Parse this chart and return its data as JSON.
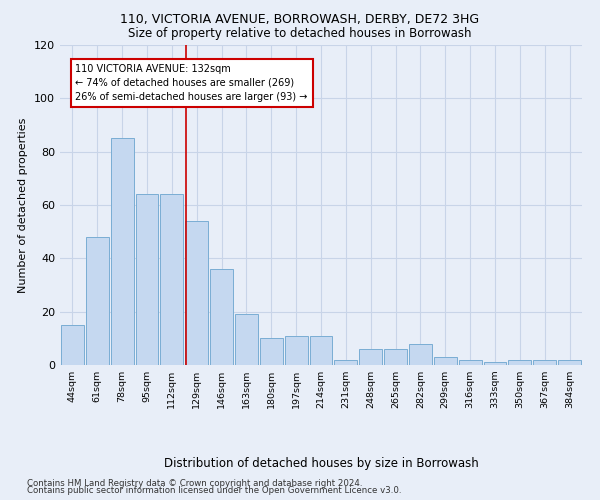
{
  "title1": "110, VICTORIA AVENUE, BORROWASH, DERBY, DE72 3HG",
  "title2": "Size of property relative to detached houses in Borrowash",
  "xlabel": "Distribution of detached houses by size in Borrowash",
  "ylabel": "Number of detached properties",
  "bar_labels": [
    "44sqm",
    "61sqm",
    "78sqm",
    "95sqm",
    "112sqm",
    "129sqm",
    "146sqm",
    "163sqm",
    "180sqm",
    "197sqm",
    "214sqm",
    "231sqm",
    "248sqm",
    "265sqm",
    "282sqm",
    "299sqm",
    "316sqm",
    "333sqm",
    "350sqm",
    "367sqm",
    "384sqm"
  ],
  "bar_values": [
    15,
    48,
    85,
    64,
    64,
    54,
    36,
    19,
    10,
    11,
    11,
    2,
    6,
    6,
    8,
    3,
    2,
    1,
    2,
    2,
    2
  ],
  "bar_color": "#c5d8f0",
  "bar_edge_color": "#7aadd4",
  "vline_index": 4.55,
  "vline_color": "#cc0000",
  "annotation_text": "110 VICTORIA AVENUE: 132sqm\n← 74% of detached houses are smaller (269)\n26% of semi-detached houses are larger (93) →",
  "annotation_box_color": "#ffffff",
  "annotation_box_edge": "#cc0000",
  "ylim": [
    0,
    120
  ],
  "yticks": [
    0,
    20,
    40,
    60,
    80,
    100,
    120
  ],
  "footnote1": "Contains HM Land Registry data © Crown copyright and database right 2024.",
  "footnote2": "Contains public sector information licensed under the Open Government Licence v3.0.",
  "grid_color": "#c8d4e8",
  "background_color": "#e8eef8"
}
